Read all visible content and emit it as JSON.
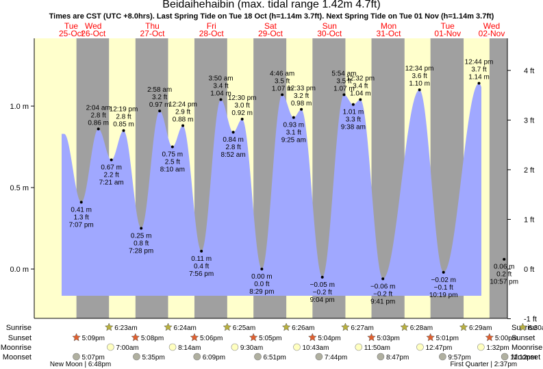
{
  "title": "Beidaihehaibin (max. tidal range 1.42m 4.7ft)",
  "subtitle": "Times are CST (UTC +8.0hrs). Last Spring Tide on Tue 18 Oct (h=1.14m 3.7ft). Next Spring Tide on Tue 01 Nov (h=1.14m 3.7ft)",
  "colors": {
    "day": "#ffffcc",
    "night": "#a0a0a0",
    "water": "#a0a8ff",
    "day_header": "#ff0000",
    "sun_star": "#b8b040",
    "sunset_star": "#e06030",
    "moon_up": "#ffffc0",
    "moon_down": "#b0b0a0"
  },
  "chart_data": {
    "type": "area",
    "xlabel": "",
    "ylabel": "",
    "x_range": [
      "2022-10-25 00:00",
      "2022-11-02 00:00"
    ],
    "ylim_m": [
      -0.3,
      1.45
    ],
    "left_axis": {
      "ticks": [
        -0.0,
        0.5,
        1.0
      ],
      "labels": [
        "0.0 m",
        "0.5 m",
        "1.0 m"
      ]
    },
    "right_axis": {
      "ticks_ft": [
        -1,
        0,
        1,
        2,
        3,
        4
      ],
      "labels": [
        "-1 ft",
        "0 ft",
        "1 ft",
        "2 ft",
        "3 ft",
        "4 ft"
      ]
    },
    "days": [
      {
        "dow": "Tue",
        "date": "25-Oct"
      },
      {
        "dow": "Wed",
        "date": "26-Oct"
      },
      {
        "dow": "Thu",
        "date": "27-Oct"
      },
      {
        "dow": "Fri",
        "date": "28-Oct"
      },
      {
        "dow": "Sat",
        "date": "29-Oct"
      },
      {
        "dow": "Sun",
        "date": "30-Oct"
      },
      {
        "dow": "Mon",
        "date": "31-Oct"
      },
      {
        "dow": "Tue",
        "date": "01-Nov"
      },
      {
        "dow": "Wed",
        "date": "02-Nov"
      }
    ],
    "tides": [
      {
        "t": "2022-10-25 19:07",
        "m": "0.41 m",
        "ft": "1.3 ft",
        "time": "7:07 pm",
        "h": 0.41,
        "type": "low"
      },
      {
        "t": "2022-10-26 02:04",
        "m": "0.86 m",
        "ft": "2.8 ft",
        "time": "2:04 am",
        "h": 0.86,
        "type": "high"
      },
      {
        "t": "2022-10-26 07:21",
        "m": "0.67 m",
        "ft": "2.2 ft",
        "time": "7:21 am",
        "h": 0.67,
        "type": "low"
      },
      {
        "t": "2022-10-26 12:19",
        "m": "0.85 m",
        "ft": "2.8 ft",
        "time": "12:19 pm",
        "h": 0.85,
        "type": "high"
      },
      {
        "t": "2022-10-26 19:28",
        "m": "0.25 m",
        "ft": "0.8 ft",
        "time": "7:28 pm",
        "h": 0.25,
        "type": "low"
      },
      {
        "t": "2022-10-27 02:58",
        "m": "0.97 m",
        "ft": "3.2 ft",
        "time": "2:58 am",
        "h": 0.97,
        "type": "high"
      },
      {
        "t": "2022-10-27 08:10",
        "m": "0.75 m",
        "ft": "2.5 ft",
        "time": "8:10 am",
        "h": 0.75,
        "type": "low"
      },
      {
        "t": "2022-10-27 12:24",
        "m": "0.88 m",
        "ft": "2.9 ft",
        "time": "12:24 pm",
        "h": 0.88,
        "type": "high"
      },
      {
        "t": "2022-10-27 19:56",
        "m": "0.11 m",
        "ft": "0.4 ft",
        "time": "7:56 pm",
        "h": 0.11,
        "type": "low"
      },
      {
        "t": "2022-10-28 03:50",
        "m": "1.04 m",
        "ft": "3.4 ft",
        "time": "3:50 am",
        "h": 1.04,
        "type": "high"
      },
      {
        "t": "2022-10-28 08:52",
        "m": "0.84 m",
        "ft": "2.8 ft",
        "time": "8:52 am",
        "h": 0.84,
        "type": "low"
      },
      {
        "t": "2022-10-28 12:30",
        "m": "0.92 m",
        "ft": "3.0 ft",
        "time": "12:30 pm",
        "h": 0.92,
        "type": "high"
      },
      {
        "t": "2022-10-28 20:29",
        "m": "0.00 m",
        "ft": "0.0 ft",
        "time": "8:29 pm",
        "h": 0.0,
        "type": "low"
      },
      {
        "t": "2022-10-29 04:46",
        "m": "1.07 m",
        "ft": "3.5 ft",
        "time": "4:46 am",
        "h": 1.07,
        "type": "high"
      },
      {
        "t": "2022-10-29 09:25",
        "m": "0.93 m",
        "ft": "3.1 ft",
        "time": "9:25 am",
        "h": 0.93,
        "type": "low"
      },
      {
        "t": "2022-10-29 12:33",
        "m": "0.98 m",
        "ft": "3.2 ft",
        "time": "12:33 pm",
        "h": 0.98,
        "type": "high"
      },
      {
        "t": "2022-10-29 21:04",
        "m": "−0.05 m",
        "ft": "−0.2 ft",
        "time": "9:04 pm",
        "h": -0.05,
        "type": "low"
      },
      {
        "t": "2022-10-30 05:54",
        "m": "1.07 m",
        "ft": "3.5 ft",
        "time": "5:54 am",
        "h": 1.07,
        "type": "high"
      },
      {
        "t": "2022-10-30 09:38",
        "m": "1.01 m",
        "ft": "3.3 ft",
        "time": "9:38 am",
        "h": 1.01,
        "type": "low"
      },
      {
        "t": "2022-10-30 12:32",
        "m": "1.04 m",
        "ft": "3.4 ft",
        "time": "12:32 pm",
        "h": 1.04,
        "type": "high"
      },
      {
        "t": "2022-10-30 21:41",
        "m": "−0.06 m",
        "ft": "−0.2 ft",
        "time": "9:41 pm",
        "h": -0.06,
        "type": "low"
      },
      {
        "t": "2022-10-31 12:34",
        "m": "1.10 m",
        "ft": "3.6 ft",
        "time": "12:34 pm",
        "h": 1.1,
        "type": "high"
      },
      {
        "t": "2022-10-31 22:19",
        "m": "−0.02 m",
        "ft": "−0.1 ft",
        "time": "10:19 pm",
        "h": -0.02,
        "type": "low"
      },
      {
        "t": "2022-11-01 12:44",
        "m": "1.14 m",
        "ft": "3.7 ft",
        "time": "12:44 pm",
        "h": 1.14,
        "type": "high"
      },
      {
        "t": "2022-11-01 22:57",
        "m": "0.06 m",
        "ft": "0.2 ft",
        "time": "10:57 pm",
        "h": 0.06,
        "type": "low"
      }
    ],
    "nights": [
      {
        "start": "2022-10-25 17:09",
        "end": "2022-10-26 06:23"
      },
      {
        "start": "2022-10-26 17:08",
        "end": "2022-10-27 06:24"
      },
      {
        "start": "2022-10-27 17:06",
        "end": "2022-10-28 06:25"
      },
      {
        "start": "2022-10-28 17:05",
        "end": "2022-10-29 06:26"
      },
      {
        "start": "2022-10-29 17:04",
        "end": "2022-10-30 06:27"
      },
      {
        "start": "2022-10-30 17:03",
        "end": "2022-10-31 06:28"
      },
      {
        "start": "2022-10-31 17:01",
        "end": "2022-11-01 06:29"
      },
      {
        "start": "2022-11-01 17:00",
        "end": "2022-11-02 06:30"
      }
    ]
  },
  "rows": {
    "sunrise": {
      "label": "Sunrise",
      "events": [
        {
          "t": "2022-10-26 06:23",
          "text": "6:23am"
        },
        {
          "t": "2022-10-27 06:24",
          "text": "6:24am"
        },
        {
          "t": "2022-10-28 06:25",
          "text": "6:25am"
        },
        {
          "t": "2022-10-29 06:26",
          "text": "6:26am"
        },
        {
          "t": "2022-10-30 06:27",
          "text": "6:27am"
        },
        {
          "t": "2022-10-31 06:28",
          "text": "6:28am"
        },
        {
          "t": "2022-11-01 06:29",
          "text": "6:29am"
        },
        {
          "t": "2022-11-02 06:30",
          "text": "6:30am"
        }
      ]
    },
    "sunset": {
      "label": "Sunset",
      "events": [
        {
          "t": "2022-10-25 17:09",
          "text": "5:09pm"
        },
        {
          "t": "2022-10-26 17:08",
          "text": "5:08pm"
        },
        {
          "t": "2022-10-27 17:06",
          "text": "5:06pm"
        },
        {
          "t": "2022-10-28 17:05",
          "text": "5:05pm"
        },
        {
          "t": "2022-10-29 17:04",
          "text": "5:04pm"
        },
        {
          "t": "2022-10-30 17:03",
          "text": "5:03pm"
        },
        {
          "t": "2022-10-31 17:01",
          "text": "5:01pm"
        },
        {
          "t": "2022-11-01 17:00",
          "text": "5:00pm"
        }
      ]
    },
    "moonrise": {
      "label": "Moonrise",
      "events": [
        {
          "t": "2022-10-26 07:00",
          "text": "7:00am"
        },
        {
          "t": "2022-10-27 08:14",
          "text": "8:14am"
        },
        {
          "t": "2022-10-28 09:30",
          "text": "9:30am"
        },
        {
          "t": "2022-10-29 10:43",
          "text": "10:43am"
        },
        {
          "t": "2022-10-30 11:50",
          "text": "11:50am"
        },
        {
          "t": "2022-10-31 12:47",
          "text": "12:47pm"
        },
        {
          "t": "2022-11-01 13:32",
          "text": "1:32pm"
        }
      ]
    },
    "moonset": {
      "label": "Moonset",
      "events": [
        {
          "t": "2022-10-25 17:07",
          "text": "5:07pm"
        },
        {
          "t": "2022-10-26 17:35",
          "text": "5:35pm"
        },
        {
          "t": "2022-10-27 18:09",
          "text": "6:09pm"
        },
        {
          "t": "2022-10-28 18:51",
          "text": "6:51pm"
        },
        {
          "t": "2022-10-29 19:44",
          "text": "7:44pm"
        },
        {
          "t": "2022-10-30 20:47",
          "text": "8:47pm"
        },
        {
          "t": "2022-10-31 21:57",
          "text": "9:57pm"
        },
        {
          "t": "2022-11-01 23:12",
          "text": "11:12pm"
        }
      ]
    }
  },
  "moon_phases": [
    {
      "t": "2022-10-25 18:48",
      "text": "New Moon | 6:48pm"
    },
    {
      "t": "2022-11-01 14:37",
      "text": "First Quarter | 2:37pm"
    }
  ]
}
